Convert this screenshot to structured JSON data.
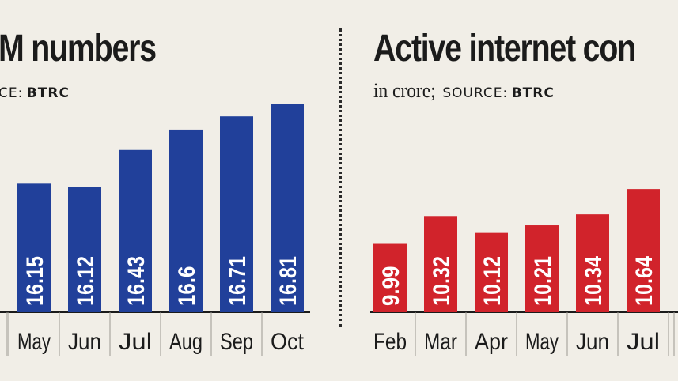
{
  "chart_data": [
    {
      "type": "bar",
      "title": "M numbers",
      "subtitle_prefix": "CE:",
      "source": "BTRC",
      "categories": [
        "",
        "May",
        "Jun",
        "Jul",
        "Aug",
        "Sep",
        "Oct"
      ],
      "values": [
        null,
        16.15,
        16.12,
        16.43,
        16.6,
        16.71,
        16.81
      ],
      "labels": [
        "",
        "16.15",
        "16.12",
        "16.43",
        "16.6",
        "16.71",
        "16.81"
      ],
      "color": "#21409a"
    },
    {
      "type": "bar",
      "title": "Active internet con",
      "unit_text": "in crore;",
      "subtitle_prefix": "SOURCE:",
      "source": "BTRC",
      "categories": [
        "Feb",
        "Mar",
        "Apr",
        "May",
        "Jun",
        "Jul",
        ""
      ],
      "values": [
        9.99,
        10.32,
        10.12,
        10.21,
        10.34,
        10.64,
        null
      ],
      "labels": [
        "9.99",
        "10.32",
        "10.12",
        "10.21",
        "10.34",
        "10.64",
        ""
      ],
      "color": "#d1232b"
    }
  ]
}
